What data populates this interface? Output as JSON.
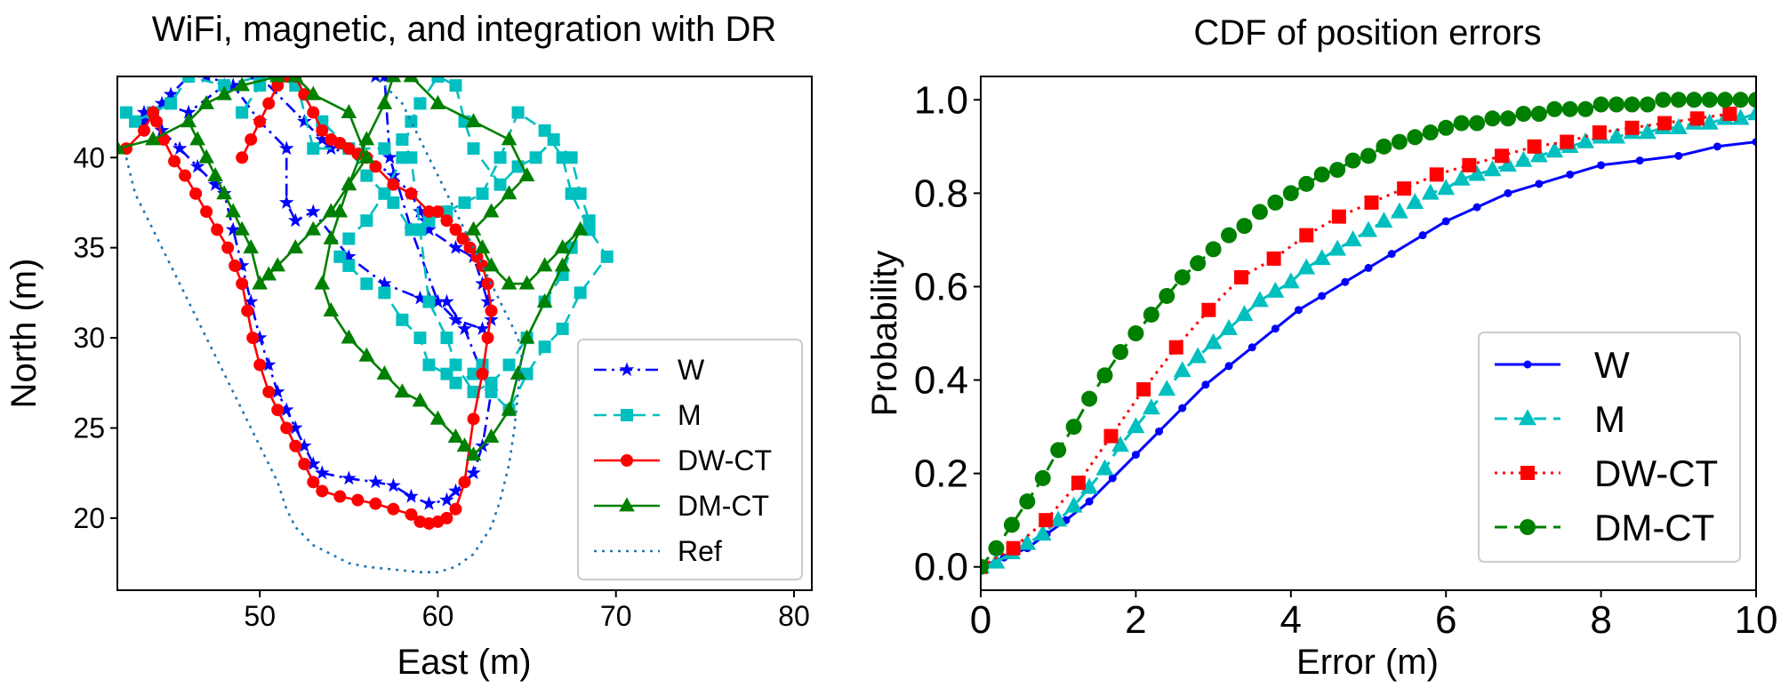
{
  "chart_data": [
    {
      "type": "line",
      "title": "WiFi, magnetic, and integration with DR",
      "xlabel": "East (m)",
      "ylabel": "North (m)",
      "xlim": [
        42,
        81
      ],
      "ylim": [
        16,
        44.5
      ],
      "xticks": [
        "50",
        "60",
        "70",
        "80"
      ],
      "yticks": [
        "20",
        "25",
        "30",
        "35",
        "40"
      ],
      "legend_position": "lower-right",
      "series": [
        {
          "name": "W",
          "color": "#0000ff",
          "marker": "star",
          "dash": "dashdot",
          "x": [
            43.5,
            44.5,
            45.5,
            46.5,
            47.5,
            48,
            48.5,
            49,
            49.5,
            50,
            50.5,
            51,
            51.5,
            52,
            52.5,
            53,
            53.5,
            55,
            56.5,
            57.5,
            58.5,
            59.5,
            60.5,
            61,
            62,
            62.5,
            63,
            62.5,
            61.5,
            60.5,
            59.5,
            59,
            57,
            55,
            53,
            52,
            51.5,
            51.5,
            50,
            48.5,
            47,
            46,
            45,
            44,
            43.5,
            44.5,
            46,
            48,
            50,
            52.5,
            53.5,
            54,
            56,
            57.5,
            58.5,
            59,
            59.3,
            59.5,
            61,
            62,
            62.5,
            62.8,
            63,
            62.5,
            61,
            60,
            58.5,
            57.3,
            57,
            56.5
          ],
          "y": [
            42.5,
            41.5,
            40.5,
            39.5,
            38.5,
            38,
            36,
            34,
            32,
            30,
            28.5,
            27,
            26,
            25,
            24,
            23,
            22.5,
            22.2,
            22,
            21.8,
            21.2,
            20.8,
            21,
            21.5,
            22.5,
            24,
            27,
            28,
            30.5,
            32,
            32.2,
            32.2,
            33,
            34.5,
            37,
            36.5,
            37.5,
            40.5,
            42,
            44,
            44.5,
            44.5,
            43.5,
            42.5,
            42,
            43,
            42.5,
            44,
            44.5,
            42,
            41,
            40.5,
            40,
            39,
            38,
            37,
            36.5,
            36,
            35,
            34.5,
            33,
            32,
            31,
            30.5,
            31,
            32,
            36,
            40,
            44.5,
            44.5
          ]
        },
        {
          "name": "M",
          "color": "#00bfbf",
          "marker": "square",
          "dash": "dashed",
          "x": [
            42.5,
            43,
            44,
            45,
            46,
            48,
            50,
            51,
            52,
            53,
            55,
            57,
            58,
            58.5,
            59,
            59.5,
            60.5,
            61,
            62,
            63,
            64,
            65,
            66,
            67,
            67.5,
            68.5,
            68,
            67.5,
            66.5,
            65.5,
            64.5,
            63.5,
            62,
            61.5,
            61,
            60,
            59,
            58.5,
            58,
            57,
            56,
            55,
            54.5,
            55,
            56,
            57,
            58,
            59,
            59.5,
            60.5,
            61,
            62,
            62.5,
            63,
            64,
            65,
            66,
            67,
            68,
            69.5,
            68.5,
            67.5,
            67,
            66,
            64.5,
            63.5,
            62.5,
            61.5,
            60.5,
            59.5,
            58.5,
            57.5,
            56,
            55,
            53.5,
            52,
            51,
            50,
            49
          ],
          "y": [
            42.5,
            42,
            42.5,
            43,
            44.5,
            44,
            44.5,
            44.5,
            44.5,
            40.5,
            40.5,
            40.5,
            41,
            40,
            36,
            32,
            30,
            28.5,
            27,
            27.5,
            28.5,
            30,
            32,
            33.5,
            35,
            36.5,
            38,
            40,
            41,
            40,
            39.5,
            38.5,
            40.5,
            42,
            44,
            44.5,
            43,
            42,
            40,
            38,
            36.5,
            35.5,
            34.5,
            34,
            33,
            32.5,
            31,
            30,
            28.5,
            28,
            27.5,
            28,
            28.5,
            27,
            26,
            28,
            29.5,
            30.5,
            32.5,
            34.5,
            36,
            38,
            40,
            41.5,
            42.5,
            40,
            38,
            37.5,
            37,
            36.5,
            36,
            37.5,
            39,
            40.5,
            42,
            44,
            44.5,
            44,
            42.5
          ]
        },
        {
          "name": "DW-CT",
          "color": "#ff0000",
          "marker": "circle",
          "dash": "solid",
          "x": [
            42.5,
            43.5,
            44,
            44.2,
            44.6,
            45.2,
            45.8,
            46.4,
            47,
            47.6,
            48.2,
            48.6,
            49,
            49.3,
            49.6,
            50,
            50.5,
            51,
            51.5,
            52,
            52.5,
            53,
            53.5,
            54.5,
            55.5,
            56.5,
            57.5,
            58.5,
            59,
            59.5,
            60,
            60.5,
            61,
            61.5,
            62,
            62.5,
            62.8,
            63,
            62.8,
            62.5,
            62.2,
            61.8,
            61.4,
            61,
            60.5,
            60,
            59.5,
            58.5,
            57.5,
            56.5,
            56,
            55.5,
            55,
            54.5,
            54,
            53.5,
            53,
            52.5,
            52,
            51.5,
            51,
            50.5,
            50,
            49.5,
            49
          ],
          "y": [
            40.5,
            41.5,
            42.5,
            42,
            41,
            39.8,
            39,
            38,
            37,
            36,
            35,
            34,
            33,
            31.5,
            30,
            28.5,
            27,
            26,
            25,
            24,
            23,
            22,
            21.5,
            21.2,
            21,
            20.8,
            20.5,
            20.2,
            19.8,
            19.7,
            19.8,
            20,
            20.5,
            22,
            25.5,
            28,
            30,
            31.5,
            33,
            34,
            34.5,
            35,
            35.5,
            36,
            36.5,
            37,
            37,
            38,
            38.5,
            39.5,
            40,
            40.2,
            40.5,
            40.8,
            41,
            41.5,
            42.5,
            43.5,
            44.5,
            44.5,
            44,
            43,
            42,
            41,
            40
          ]
        },
        {
          "name": "DM-CT",
          "color": "#008000",
          "marker": "triangle",
          "dash": "solid",
          "x": [
            42,
            44,
            46,
            47,
            48,
            49,
            51,
            52,
            53,
            55,
            56,
            55,
            54.5,
            54,
            53.5,
            54,
            55,
            56,
            57,
            58,
            59,
            60,
            61,
            61.5,
            62,
            63,
            64,
            64.5,
            65,
            66,
            67,
            68,
            67,
            66,
            65,
            64,
            63,
            62.5,
            62,
            63,
            64,
            65,
            64,
            62,
            60,
            58.5,
            57.5,
            57,
            56,
            55,
            54,
            53,
            52,
            51,
            50.5,
            50,
            49.5,
            49,
            48.5,
            48,
            47.5,
            47,
            46.5,
            46
          ],
          "y": [
            40.5,
            41,
            42,
            43,
            43.5,
            44,
            44.5,
            44.5,
            43.5,
            42.5,
            40,
            38.5,
            37,
            35.5,
            33,
            31.5,
            30,
            29,
            28,
            27,
            26.5,
            25.5,
            24.5,
            24,
            23.5,
            24.5,
            26,
            28,
            30,
            32,
            34,
            36,
            35,
            34,
            33,
            33,
            34,
            35,
            36,
            37,
            38,
            39,
            41,
            42,
            43,
            44.5,
            44.5,
            43,
            41,
            38.5,
            37,
            36,
            35,
            34,
            33.5,
            33,
            35,
            36,
            37,
            38,
            39,
            40,
            41,
            42
          ]
        },
        {
          "name": "Ref",
          "color": "#1f77b4",
          "marker": "none",
          "dash": "dotted",
          "x": [
            42.5,
            43,
            44,
            45,
            46,
            47,
            48,
            49,
            50,
            51,
            51.5,
            52,
            53,
            54,
            55,
            56,
            57,
            58,
            59,
            60,
            61,
            62,
            63,
            63.5,
            64,
            64.3,
            64.5,
            64.7,
            64.5,
            64,
            63.5,
            63,
            62.5,
            62,
            61.5,
            61,
            60.5,
            60,
            59.5,
            59,
            58.5,
            58,
            57.5,
            57,
            56.5
          ],
          "y": [
            40,
            38,
            36,
            34,
            32,
            30,
            28,
            26,
            24,
            22,
            20.5,
            19.5,
            18.5,
            18,
            17.5,
            17.3,
            17.2,
            17.1,
            17,
            17,
            17.3,
            18,
            19.5,
            21,
            23,
            25,
            27,
            29,
            30,
            31,
            32,
            33,
            34,
            35,
            36,
            37,
            38,
            39,
            40,
            41,
            42,
            43,
            43.5,
            44,
            44.5
          ]
        }
      ]
    },
    {
      "type": "line",
      "title": "CDF of position errors",
      "xlabel": "Error (m)",
      "ylabel": "Probability",
      "xlim": [
        0,
        10
      ],
      "ylim": [
        -0.05,
        1.05
      ],
      "xticks": [
        "0",
        "2",
        "4",
        "6",
        "8",
        "10"
      ],
      "yticks": [
        "0.0",
        "0.2",
        "0.4",
        "0.6",
        "0.8",
        "1.0"
      ],
      "legend_position": "lower-right",
      "series": [
        {
          "name": "W",
          "color": "#0000ff",
          "marker": "dot",
          "dash": "solid",
          "x": [
            0,
            0.3,
            0.6,
            0.85,
            1.1,
            1.4,
            1.7,
            2.0,
            2.3,
            2.6,
            2.9,
            3.2,
            3.5,
            3.8,
            4.1,
            4.4,
            4.7,
            5.0,
            5.3,
            5.7,
            6.0,
            6.4,
            6.8,
            7.2,
            7.6,
            8.0,
            8.5,
            9.0,
            9.5,
            10.0
          ],
          "y": [
            0.0,
            0.02,
            0.04,
            0.07,
            0.1,
            0.14,
            0.19,
            0.24,
            0.29,
            0.34,
            0.39,
            0.43,
            0.47,
            0.51,
            0.55,
            0.58,
            0.61,
            0.64,
            0.67,
            0.71,
            0.74,
            0.77,
            0.8,
            0.82,
            0.84,
            0.86,
            0.87,
            0.88,
            0.9,
            0.91
          ]
        },
        {
          "name": "M",
          "color": "#00bfbf",
          "marker": "triangle",
          "dash": "dashed",
          "x": [
            0,
            0.2,
            0.4,
            0.6,
            0.8,
            1.0,
            1.2,
            1.4,
            1.6,
            1.8,
            2.0,
            2.2,
            2.4,
            2.6,
            2.8,
            3.0,
            3.2,
            3.4,
            3.6,
            3.8,
            4.0,
            4.2,
            4.4,
            4.6,
            4.8,
            5.0,
            5.2,
            5.4,
            5.6,
            5.8,
            6.0,
            6.2,
            6.4,
            6.6,
            6.8,
            7.0,
            7.2,
            7.4,
            7.6,
            7.8,
            8.0,
            8.2,
            8.4,
            8.6,
            8.8,
            9.0,
            9.2,
            9.4,
            9.6,
            9.8,
            10.0
          ],
          "y": [
            0.0,
            0.01,
            0.03,
            0.05,
            0.07,
            0.1,
            0.13,
            0.17,
            0.21,
            0.26,
            0.3,
            0.34,
            0.38,
            0.42,
            0.45,
            0.48,
            0.51,
            0.54,
            0.57,
            0.59,
            0.61,
            0.64,
            0.66,
            0.68,
            0.7,
            0.72,
            0.74,
            0.76,
            0.78,
            0.8,
            0.81,
            0.83,
            0.84,
            0.85,
            0.86,
            0.87,
            0.88,
            0.89,
            0.9,
            0.91,
            0.92,
            0.92,
            0.93,
            0.93,
            0.94,
            0.94,
            0.95,
            0.95,
            0.96,
            0.96,
            0.97
          ]
        },
        {
          "name": "DW-CT",
          "color": "#ff0000",
          "marker": "square",
          "dash": "dotted",
          "x": [
            0,
            0.42,
            0.84,
            1.26,
            1.68,
            2.1,
            2.52,
            2.94,
            3.36,
            3.78,
            4.2,
            4.62,
            5.04,
            5.46,
            5.88,
            6.3,
            6.72,
            7.14,
            7.56,
            7.98,
            8.4,
            8.82,
            9.24,
            9.66
          ],
          "y": [
            0.0,
            0.04,
            0.1,
            0.18,
            0.28,
            0.38,
            0.47,
            0.55,
            0.62,
            0.66,
            0.71,
            0.75,
            0.78,
            0.81,
            0.84,
            0.86,
            0.88,
            0.9,
            0.91,
            0.93,
            0.94,
            0.95,
            0.96,
            0.97
          ]
        },
        {
          "name": "DM-CT",
          "color": "#008000",
          "marker": "circle",
          "dash": "dashed",
          "x": [
            0,
            0.2,
            0.4,
            0.6,
            0.8,
            1.0,
            1.2,
            1.4,
            1.6,
            1.8,
            2.0,
            2.2,
            2.4,
            2.6,
            2.8,
            3.0,
            3.2,
            3.4,
            3.6,
            3.8,
            4.0,
            4.2,
            4.4,
            4.6,
            4.8,
            5.0,
            5.2,
            5.4,
            5.6,
            5.8,
            6.0,
            6.2,
            6.4,
            6.6,
            6.8,
            7.0,
            7.2,
            7.4,
            7.6,
            7.8,
            8.0,
            8.2,
            8.4,
            8.6,
            8.8,
            9.0,
            9.2,
            9.4,
            9.6,
            9.8,
            10.0
          ],
          "y": [
            0.0,
            0.04,
            0.09,
            0.14,
            0.19,
            0.25,
            0.3,
            0.36,
            0.41,
            0.46,
            0.5,
            0.54,
            0.58,
            0.62,
            0.65,
            0.68,
            0.71,
            0.73,
            0.76,
            0.78,
            0.8,
            0.82,
            0.84,
            0.85,
            0.87,
            0.88,
            0.9,
            0.91,
            0.92,
            0.93,
            0.94,
            0.95,
            0.95,
            0.96,
            0.96,
            0.97,
            0.97,
            0.98,
            0.98,
            0.98,
            0.99,
            0.99,
            0.99,
            0.99,
            1.0,
            1.0,
            1.0,
            1.0,
            1.0,
            1.0,
            1.0
          ]
        }
      ]
    }
  ]
}
